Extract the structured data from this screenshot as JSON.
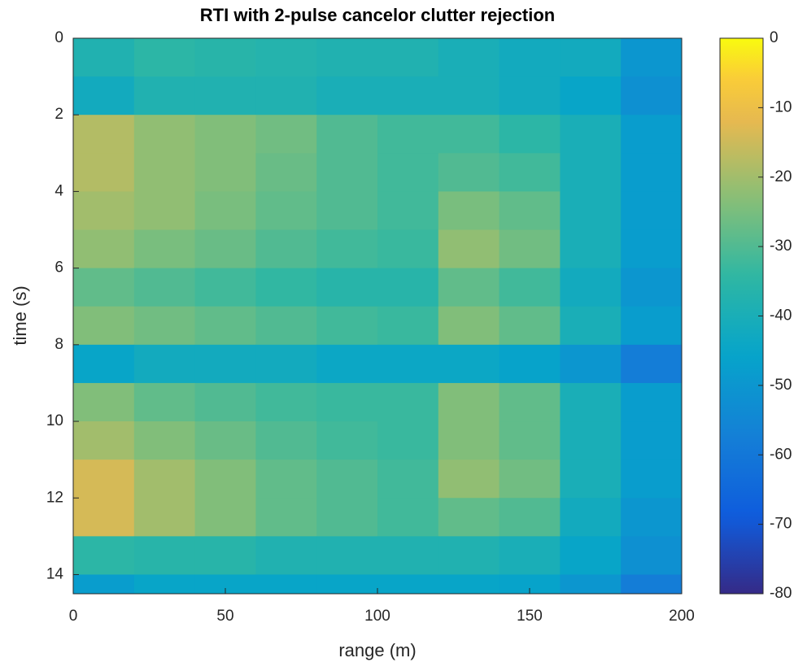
{
  "chart_data": {
    "type": "heatmap",
    "title": "RTI with 2-pulse cancelor clutter rejection",
    "x_label": "range (m)",
    "y_label": "time (s)",
    "xbins": [
      0,
      20,
      40,
      60,
      80,
      100,
      120,
      140,
      160,
      180,
      200
    ],
    "ybins": [
      0,
      1,
      2,
      3,
      4,
      5,
      6,
      7,
      8,
      9,
      10,
      11,
      12,
      13,
      14,
      14.5
    ],
    "z": [
      [
        -38,
        -35,
        -36,
        -37,
        -38,
        -38,
        -40,
        -42,
        -42,
        -50
      ],
      [
        -42,
        -38,
        -38,
        -38,
        -40,
        -40,
        -40,
        -42,
        -45,
        -52
      ],
      [
        -18,
        -22,
        -24,
        -26,
        -30,
        -32,
        -32,
        -35,
        -40,
        -48
      ],
      [
        -18,
        -22,
        -24,
        -27,
        -30,
        -32,
        -30,
        -32,
        -40,
        -48
      ],
      [
        -20,
        -22,
        -25,
        -28,
        -30,
        -32,
        -25,
        -28,
        -40,
        -48
      ],
      [
        -22,
        -25,
        -27,
        -30,
        -32,
        -33,
        -22,
        -26,
        -40,
        -48
      ],
      [
        -28,
        -30,
        -32,
        -34,
        -36,
        -36,
        -28,
        -32,
        -42,
        -50
      ],
      [
        -24,
        -26,
        -28,
        -30,
        -32,
        -33,
        -24,
        -28,
        -40,
        -48
      ],
      [
        -45,
        -42,
        -42,
        -42,
        -44,
        -44,
        -44,
        -46,
        -50,
        -58
      ],
      [
        -24,
        -28,
        -30,
        -32,
        -33,
        -33,
        -24,
        -28,
        -40,
        -48
      ],
      [
        -20,
        -24,
        -27,
        -30,
        -32,
        -33,
        -24,
        -28,
        -40,
        -48
      ],
      [
        -14,
        -20,
        -24,
        -28,
        -30,
        -32,
        -22,
        -26,
        -40,
        -48
      ],
      [
        -14,
        -20,
        -24,
        -28,
        -30,
        -32,
        -28,
        -30,
        -42,
        -50
      ],
      [
        -35,
        -36,
        -36,
        -38,
        -38,
        -38,
        -38,
        -40,
        -45,
        -52
      ],
      [
        -48,
        -45,
        -45,
        -45,
        -45,
        -45,
        -45,
        -46,
        -50,
        -58
      ]
    ],
    "xlim": [
      0,
      200
    ],
    "xticks": [
      0,
      50,
      100,
      150,
      200
    ],
    "ylim": [
      0,
      14.5
    ],
    "yticks": [
      0,
      2,
      4,
      6,
      8,
      10,
      12,
      14
    ],
    "y_reversed": true,
    "colormap": "parula",
    "clim": [
      -80,
      0
    ],
    "cticks": [
      -80,
      -70,
      -60,
      -50,
      -40,
      -30,
      -20,
      -10,
      0
    ]
  }
}
